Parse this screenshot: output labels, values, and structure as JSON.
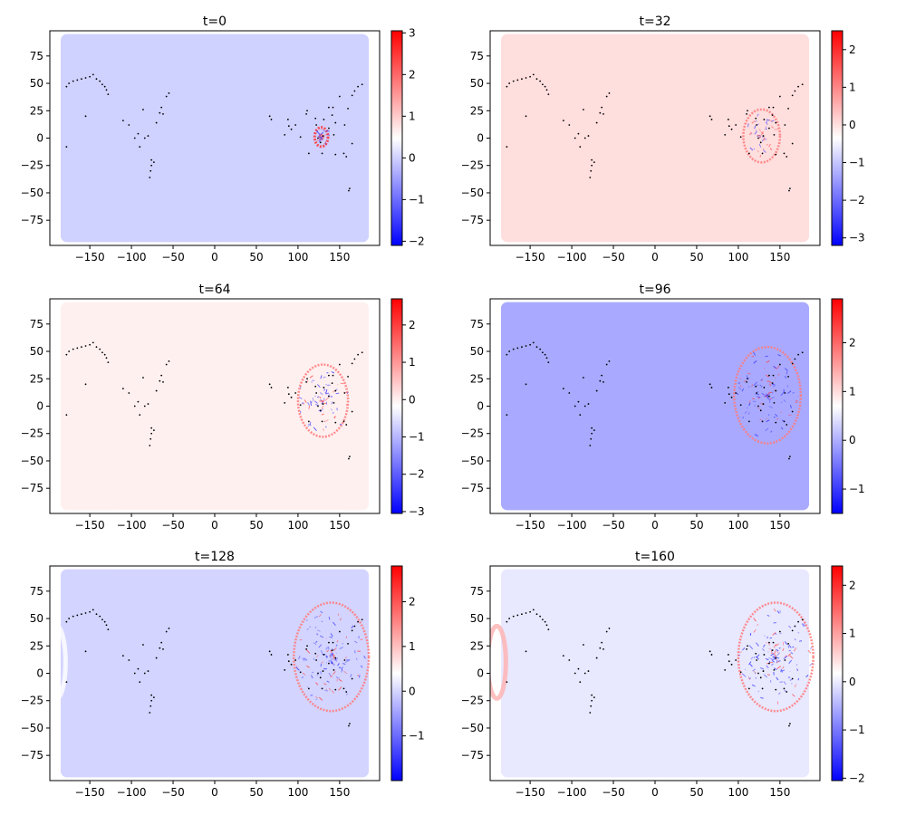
{
  "chart_data": [
    {
      "type": "heatmap",
      "title": "t=0",
      "xticks": [
        -150,
        -100,
        -50,
        0,
        50,
        100,
        150
      ],
      "yticks": [
        75,
        50,
        25,
        0,
        -25,
        -50,
        -75
      ],
      "xlim": [
        -198,
        198
      ],
      "ylim": [
        -98,
        98
      ],
      "background_color": "#cfd1ff",
      "colorbar": {
        "ticks": [
          3,
          2,
          1,
          0,
          -1,
          -2
        ],
        "min": -2.1,
        "max": 3.05
      },
      "wave_center": [
        128,
        1
      ],
      "wave_radius": 8,
      "wave_spread": 0
    },
    {
      "type": "heatmap",
      "title": "t=32",
      "xticks": [
        -150,
        -100,
        -50,
        0,
        50,
        100,
        150
      ],
      "yticks": [
        75,
        50,
        25,
        0,
        -25,
        -50,
        -75
      ],
      "xlim": [
        -198,
        198
      ],
      "ylim": [
        -98,
        98
      ],
      "background_color": "#ffdede",
      "colorbar": {
        "ticks": [
          2,
          1,
          0,
          -1,
          -2,
          -3
        ],
        "min": -3.2,
        "max": 2.5
      },
      "wave_center": [
        128,
        2
      ],
      "wave_radius": 22,
      "wave_spread": 0.2
    },
    {
      "type": "heatmap",
      "title": "t=64",
      "xticks": [
        -150,
        -100,
        -50,
        0,
        50,
        100,
        150
      ],
      "yticks": [
        75,
        50,
        25,
        0,
        -25,
        -50,
        -75
      ],
      "xlim": [
        -198,
        198
      ],
      "ylim": [
        -98,
        98
      ],
      "background_color": "#fff0f0",
      "colorbar": {
        "ticks": [
          2,
          1,
          0,
          -1,
          -2,
          -3
        ],
        "min": -3.05,
        "max": 2.7
      },
      "wave_center": [
        130,
        5
      ],
      "wave_radius": 30,
      "wave_spread": 0.45
    },
    {
      "type": "heatmap",
      "title": "t=96",
      "xticks": [
        -150,
        -100,
        -50,
        0,
        50,
        100,
        150
      ],
      "yticks": [
        75,
        50,
        25,
        0,
        -25,
        -50,
        -75
      ],
      "xlim": [
        -198,
        198
      ],
      "ylim": [
        -98,
        98
      ],
      "background_color": "#a9aaff",
      "colorbar": {
        "ticks": [
          2,
          1,
          0,
          -1
        ],
        "min": -1.5,
        "max": 2.9
      },
      "wave_center": [
        135,
        10
      ],
      "wave_radius": 40,
      "wave_spread": 0.7
    },
    {
      "type": "heatmap",
      "title": "t=128",
      "xticks": [
        -150,
        -100,
        -50,
        0,
        50,
        100,
        150
      ],
      "yticks": [
        75,
        50,
        25,
        0,
        -25,
        -50,
        -75
      ],
      "xlim": [
        -198,
        198
      ],
      "ylim": [
        -98,
        98
      ],
      "background_color": "#d3d4ff",
      "colorbar": {
        "ticks": [
          2,
          1,
          0,
          -1
        ],
        "min": -2.0,
        "max": 2.8
      },
      "wave_center": [
        140,
        15
      ],
      "wave_radius": 45,
      "wave_spread": 0.85
    },
    {
      "type": "heatmap",
      "title": "t=160",
      "xticks": [
        -150,
        -100,
        -50,
        0,
        50,
        100,
        150
      ],
      "yticks": [
        75,
        50,
        25,
        0,
        -25,
        -50,
        -75
      ],
      "xlim": [
        -198,
        198
      ],
      "ylim": [
        -98,
        98
      ],
      "background_color": "#e8e8ff",
      "colorbar": {
        "ticks": [
          2,
          1,
          0,
          -1,
          -2
        ],
        "min": -2.05,
        "max": 2.4
      },
      "wave_center": [
        145,
        15
      ],
      "wave_radius": 45,
      "wave_spread": 0.9
    }
  ],
  "stations": [
    [
      -178,
      47
    ],
    [
      -175,
      50
    ],
    [
      -170,
      52
    ],
    [
      -165,
      53
    ],
    [
      -160,
      54
    ],
    [
      -155,
      55
    ],
    [
      -150,
      56
    ],
    [
      -146,
      58
    ],
    [
      -142,
      54
    ],
    [
      -138,
      52
    ],
    [
      -135,
      49
    ],
    [
      -132,
      47
    ],
    [
      -130,
      44
    ],
    [
      -128,
      40
    ],
    [
      -155,
      20
    ],
    [
      -178,
      -8
    ],
    [
      -110,
      16
    ],
    [
      -103,
      12
    ],
    [
      -96,
      0
    ],
    [
      -92,
      4
    ],
    [
      -86,
      26
    ],
    [
      -84,
      0
    ],
    [
      -80,
      2
    ],
    [
      -76,
      -20
    ],
    [
      -76,
      -25
    ],
    [
      -77,
      -30
    ],
    [
      -78,
      -36
    ],
    [
      -73,
      -22
    ],
    [
      -70,
      14
    ],
    [
      -66,
      23
    ],
    [
      -64,
      28
    ],
    [
      -62,
      22
    ],
    [
      -58,
      38
    ],
    [
      -55,
      41
    ],
    [
      -90,
      -8
    ],
    [
      66,
      20
    ],
    [
      68,
      17
    ],
    [
      88,
      17
    ],
    [
      89,
      11
    ],
    [
      92,
      8
    ],
    [
      84,
      3
    ],
    [
      97,
      12
    ],
    [
      111,
      25
    ],
    [
      121,
      18
    ],
    [
      122,
      12
    ],
    [
      124,
      0
    ],
    [
      127,
      -4
    ],
    [
      130,
      2
    ],
    [
      137,
      9
    ],
    [
      137,
      28
    ],
    [
      141,
      21
    ],
    [
      145,
      14
    ],
    [
      156,
      12
    ],
    [
      160,
      27
    ],
    [
      165,
      39
    ],
    [
      168,
      43
    ],
    [
      172,
      47
    ],
    [
      177,
      49
    ],
    [
      150,
      38
    ],
    [
      162,
      -46
    ],
    [
      161,
      -48
    ],
    [
      143,
      3
    ],
    [
      145,
      -15
    ],
    [
      155,
      -14
    ],
    [
      158,
      -17
    ],
    [
      165,
      -5
    ],
    [
      113,
      -14
    ],
    [
      129,
      -14
    ],
    [
      131,
      17
    ],
    [
      103,
      1
    ],
    [
      110,
      22
    ],
    [
      142,
      28
    ]
  ],
  "colors": {
    "cmap_low": "#0000ff",
    "cmap_mid": "#ffffff",
    "cmap_high": "#ff0000",
    "axis": "#000000",
    "station": "#000000"
  }
}
